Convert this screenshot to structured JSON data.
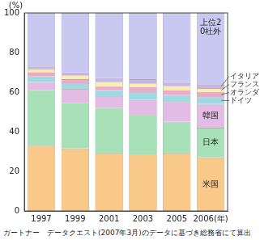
{
  "chart_data": {
    "type": "bar",
    "stacked": true,
    "grid": false,
    "y_label": "(%)",
    "source": "ガートナー　データクエスト(2007年3月)のデータに基づき総務省にて算出",
    "categories": [
      "1997",
      "1999",
      "2001",
      "2003",
      "2005",
      "2006(年)"
    ],
    "ylim": [
      0,
      100
    ],
    "yticks": [
      0,
      20,
      40,
      60,
      80,
      100
    ],
    "series": [
      {
        "name": "米国",
        "color": "#f9c98a",
        "values": [
          33,
          31.5,
          29,
          28.5,
          29,
          27
        ]
      },
      {
        "name": "日本",
        "color": "#a8e0b8",
        "values": [
          28,
          23,
          23,
          20,
          16,
          15
        ]
      },
      {
        "name": "韓国",
        "color": "#e2bce4",
        "values": [
          4,
          7,
          6,
          7.5,
          10,
          12
        ]
      },
      {
        "name": "ドイツ",
        "color": "#a0d8e4",
        "values": [
          3,
          3,
          3,
          4,
          3.5,
          3.5
        ]
      },
      {
        "name": "オランダ",
        "color": "#f0a8c8",
        "values": [
          2,
          2,
          2,
          2.5,
          2.5,
          2.5
        ]
      },
      {
        "name": "フランス",
        "color": "#f8f0a8",
        "values": [
          1.5,
          2,
          2,
          2,
          2,
          2
        ]
      },
      {
        "name": "イタリア",
        "color": "#c8b4e8",
        "values": [
          1.5,
          1.5,
          2,
          2,
          2,
          2
        ]
      },
      {
        "name": "上位20社外",
        "color": "#c8c8f0",
        "values": [
          27,
          30,
          33,
          33.5,
          35,
          36
        ]
      }
    ]
  }
}
